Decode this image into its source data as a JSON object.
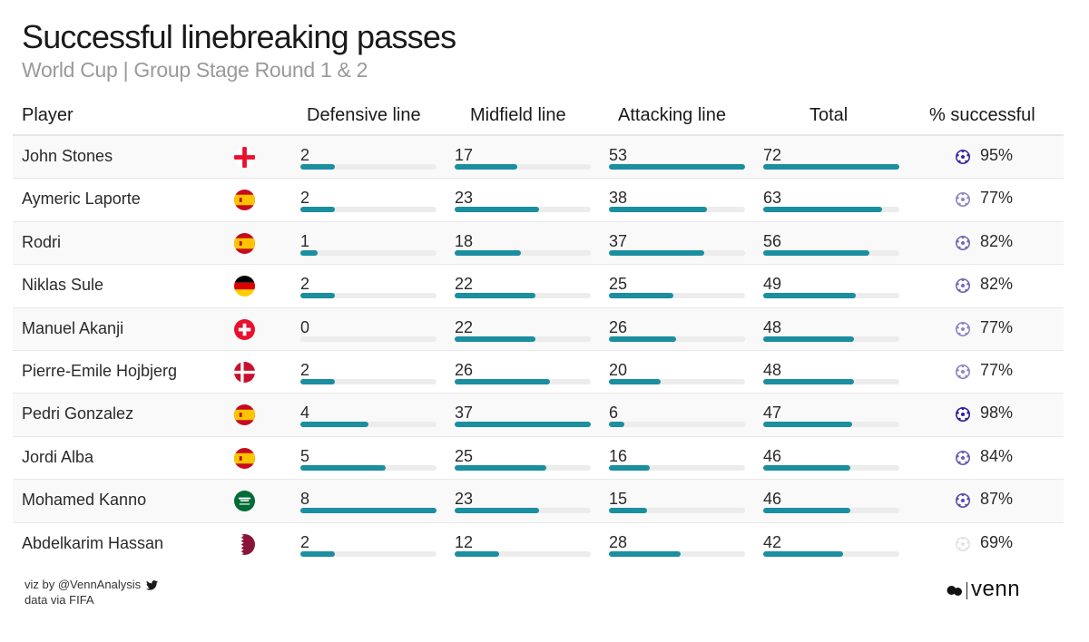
{
  "title": "Successful linebreaking passes",
  "subtitle": "World Cup | Group Stage Round 1 & 2",
  "chart_data": {
    "type": "table",
    "title": "Successful linebreaking passes",
    "subtitle": "World Cup | Group Stage Round 1 & 2",
    "columns": [
      "Player",
      "Defensive line",
      "Midfield line",
      "Attacking line",
      "Total",
      "% successful"
    ],
    "bar_max": {
      "defensive": 8,
      "midfield": 37,
      "attacking": 53,
      "total": 72
    },
    "rows": [
      {
        "player": "John Stones",
        "flag": "england",
        "defensive": 2,
        "midfield": 17,
        "attacking": 53,
        "total": 72,
        "pct_value": 95,
        "pct": "95%"
      },
      {
        "player": "Aymeric Laporte",
        "flag": "spain",
        "defensive": 2,
        "midfield": 23,
        "attacking": 38,
        "total": 63,
        "pct_value": 77,
        "pct": "77%"
      },
      {
        "player": "Rodri",
        "flag": "spain",
        "defensive": 1,
        "midfield": 18,
        "attacking": 37,
        "total": 56,
        "pct_value": 82,
        "pct": "82%"
      },
      {
        "player": "Niklas Sule",
        "flag": "germany",
        "defensive": 2,
        "midfield": 22,
        "attacking": 25,
        "total": 49,
        "pct_value": 82,
        "pct": "82%"
      },
      {
        "player": "Manuel Akanji",
        "flag": "switzerland",
        "defensive": 0,
        "midfield": 22,
        "attacking": 26,
        "total": 48,
        "pct_value": 77,
        "pct": "77%"
      },
      {
        "player": "Pierre-Emile Hojbjerg",
        "flag": "denmark",
        "defensive": 2,
        "midfield": 26,
        "attacking": 20,
        "total": 48,
        "pct_value": 77,
        "pct": "77%"
      },
      {
        "player": "Pedri Gonzalez",
        "flag": "spain",
        "defensive": 4,
        "midfield": 37,
        "attacking": 6,
        "total": 47,
        "pct_value": 98,
        "pct": "98%"
      },
      {
        "player": "Jordi Alba",
        "flag": "spain",
        "defensive": 5,
        "midfield": 25,
        "attacking": 16,
        "total": 46,
        "pct_value": 84,
        "pct": "84%"
      },
      {
        "player": "Mohamed Kanno",
        "flag": "saudi-arabia",
        "defensive": 8,
        "midfield": 23,
        "attacking": 15,
        "total": 46,
        "pct_value": 87,
        "pct": "87%"
      },
      {
        "player": "Abdelkarim Hassan",
        "flag": "qatar",
        "defensive": 2,
        "midfield": 12,
        "attacking": 28,
        "total": 42,
        "pct_value": 69,
        "pct": "69%"
      }
    ]
  },
  "colors": {
    "bar_fill": "#1b8ea0",
    "bar_track": "#ececec",
    "ball_high": "#2c1b9c",
    "ball_low": "#e2e2e2"
  },
  "footer": {
    "credit_line1": "viz by @VennAnalysis",
    "credit_line2": "data via FIFA",
    "twitter_icon": "twitter-bird-icon",
    "logo_text": "venn"
  }
}
